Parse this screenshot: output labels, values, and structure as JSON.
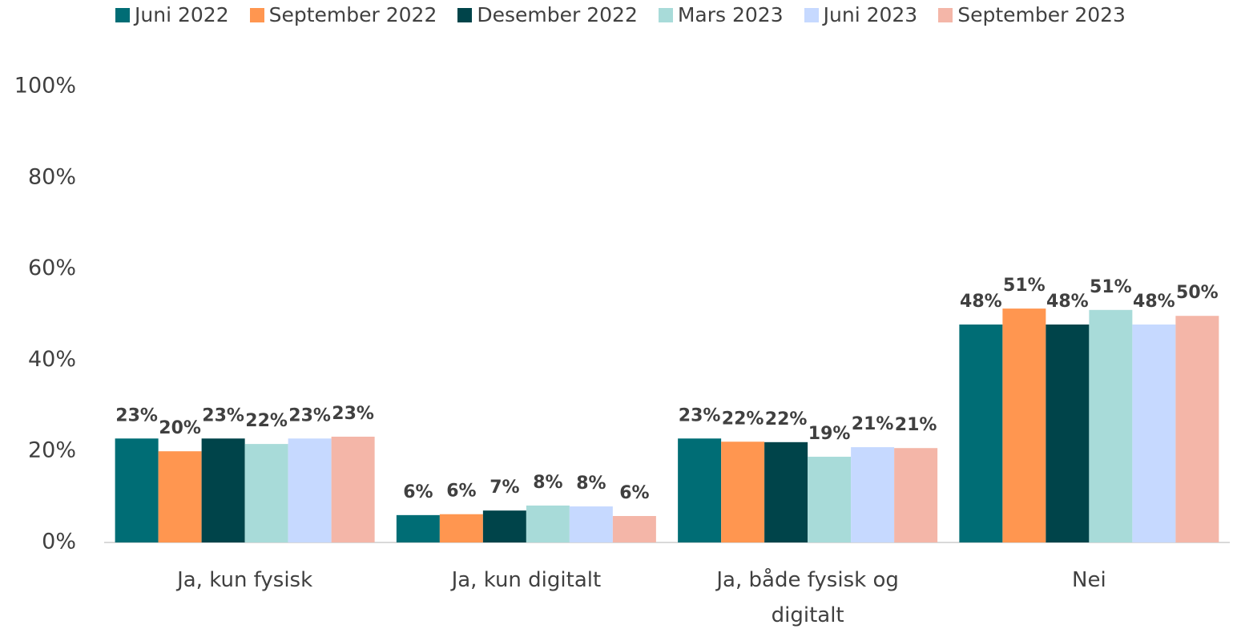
{
  "chart_data": {
    "type": "bar",
    "categories": [
      "Ja, kun fysisk",
      "Ja, kun digitalt",
      "Ja, både fysisk og digitalt",
      "Nei"
    ],
    "series": [
      {
        "name": "Juni 2022",
        "color": "#006d75",
        "values": [
          22.8,
          6.0,
          22.8,
          47.8
        ],
        "value_labels": [
          "23%",
          "6%",
          "23%",
          "48%"
        ]
      },
      {
        "name": "September 2022",
        "color": "#ff9650",
        "values": [
          20.0,
          6.2,
          22.1,
          51.3
        ],
        "value_labels": [
          "20%",
          "6%",
          "22%",
          "51%"
        ]
      },
      {
        "name": "Desember 2022",
        "color": "#00444a",
        "values": [
          22.8,
          7.0,
          22.0,
          47.8
        ],
        "value_labels": [
          "23%",
          "7%",
          "22%",
          "48%"
        ]
      },
      {
        "name": "Mars 2023",
        "color": "#a8dbd9",
        "values": [
          21.6,
          8.1,
          18.8,
          51.0
        ],
        "value_labels": [
          "22%",
          "8%",
          "19%",
          "51%"
        ]
      },
      {
        "name": "Juni 2023",
        "color": "#c6d9ff",
        "values": [
          22.8,
          7.9,
          20.9,
          47.8
        ],
        "value_labels": [
          "23%",
          "8%",
          "21%",
          "48%"
        ]
      },
      {
        "name": "September 2023",
        "color": "#f4b6a8",
        "values": [
          23.2,
          5.8,
          20.7,
          49.7
        ],
        "value_labels": [
          "23%",
          "6%",
          "21%",
          "50%"
        ]
      }
    ],
    "ylim": [
      0,
      100
    ],
    "yticks": [
      {
        "value": 0,
        "label": "0%"
      },
      {
        "value": 20,
        "label": "20%"
      },
      {
        "value": 40,
        "label": "40%"
      },
      {
        "value": 60,
        "label": "60%"
      },
      {
        "value": 80,
        "label": "80%"
      },
      {
        "value": 100,
        "label": "100%"
      }
    ],
    "legend": "top",
    "grid": false
  }
}
